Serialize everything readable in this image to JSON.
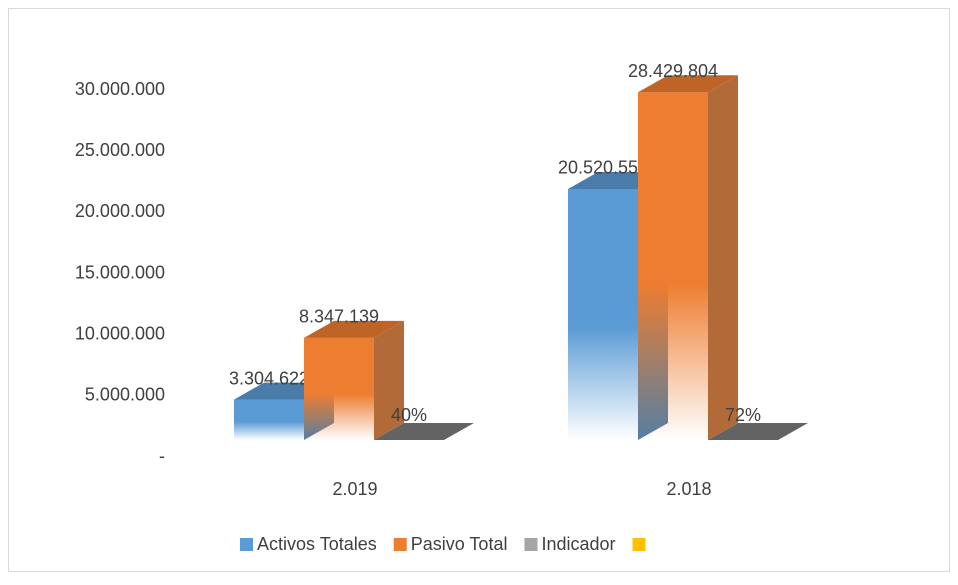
{
  "chart_data": {
    "type": "bar3d",
    "categories": [
      "2.019",
      "2.018"
    ],
    "series": [
      {
        "name": "Activos Totales",
        "color": "#5b9bd5",
        "values": [
          3304622,
          20520556
        ],
        "value_labels": [
          "3.304.622",
          "20.520.556"
        ]
      },
      {
        "name": "Pasivo Total",
        "color": "#ed7d31",
        "values": [
          8347139,
          28429804
        ],
        "value_labels": [
          "8.347.139",
          "28.429.804"
        ]
      },
      {
        "name": "Indicador",
        "color": "#a5a5a5",
        "values": [
          0.4,
          0.72
        ],
        "value_labels": [
          "40%",
          "72%"
        ]
      },
      {
        "color": "#ffc000",
        "values": [
          null,
          null
        ]
      }
    ],
    "ylim": [
      0,
      30000000
    ],
    "yticks": [
      {
        "value": 0,
        "label": "-"
      },
      {
        "value": 5000000,
        "label": "5.000.000"
      },
      {
        "value": 10000000,
        "label": "10.000.000"
      },
      {
        "value": 15000000,
        "label": "15.000.000"
      },
      {
        "value": 20000000,
        "label": "20.000.000"
      },
      {
        "value": 25000000,
        "label": "25.000.000"
      },
      {
        "value": 30000000,
        "label": "30.000.000"
      }
    ],
    "legend": "bottom",
    "grid": false
  }
}
